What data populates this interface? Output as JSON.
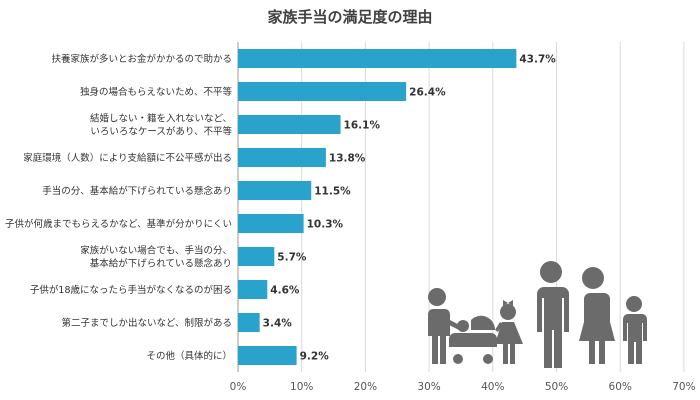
{
  "chart_data": {
    "type": "bar",
    "orientation": "horizontal",
    "title": "家族手当の満足度の理由",
    "xlabel": "",
    "ylabel": "",
    "xlim": [
      0,
      70
    ],
    "xticks": [
      "0%",
      "10%",
      "20%",
      "30%",
      "40%",
      "50%",
      "60%",
      "70%"
    ],
    "grid": true,
    "bar_color": "#2aa3cc",
    "categories": [
      [
        "扶養家族が多いとお金がかかるので助かる"
      ],
      [
        "独身の場合もらえないため、不平等"
      ],
      [
        "結婚しない・籍を入れないなど、",
        "いろいろなケースがあり、不平等"
      ],
      [
        "家庭環境（人数）により支給額に不公平感が出る"
      ],
      [
        "手当の分、基本給が下げられている懸念あり"
      ],
      [
        "子供が何歳までもらえるかなど、基準が分かりにくい"
      ],
      [
        "家族がいない場合でも、手当の分、",
        "基本給が下げられている懸念あり"
      ],
      [
        "子供が18歳になったら手当がなくなるのが困る"
      ],
      [
        "第二子までしか出ないなど、制限がある"
      ],
      [
        "その他（具体的に）"
      ]
    ],
    "values": [
      43.7,
      26.4,
      16.1,
      13.8,
      11.5,
      10.3,
      5.7,
      4.6,
      3.4,
      9.2
    ],
    "value_labels": [
      "43.7%",
      "26.4%",
      "16.1%",
      "13.8%",
      "11.5%",
      "10.3%",
      "5.7%",
      "4.6%",
      "3.4%",
      "9.2%"
    ]
  },
  "decoration": {
    "icon": "family-silhouette-icon",
    "color": "#6b6b6b"
  }
}
